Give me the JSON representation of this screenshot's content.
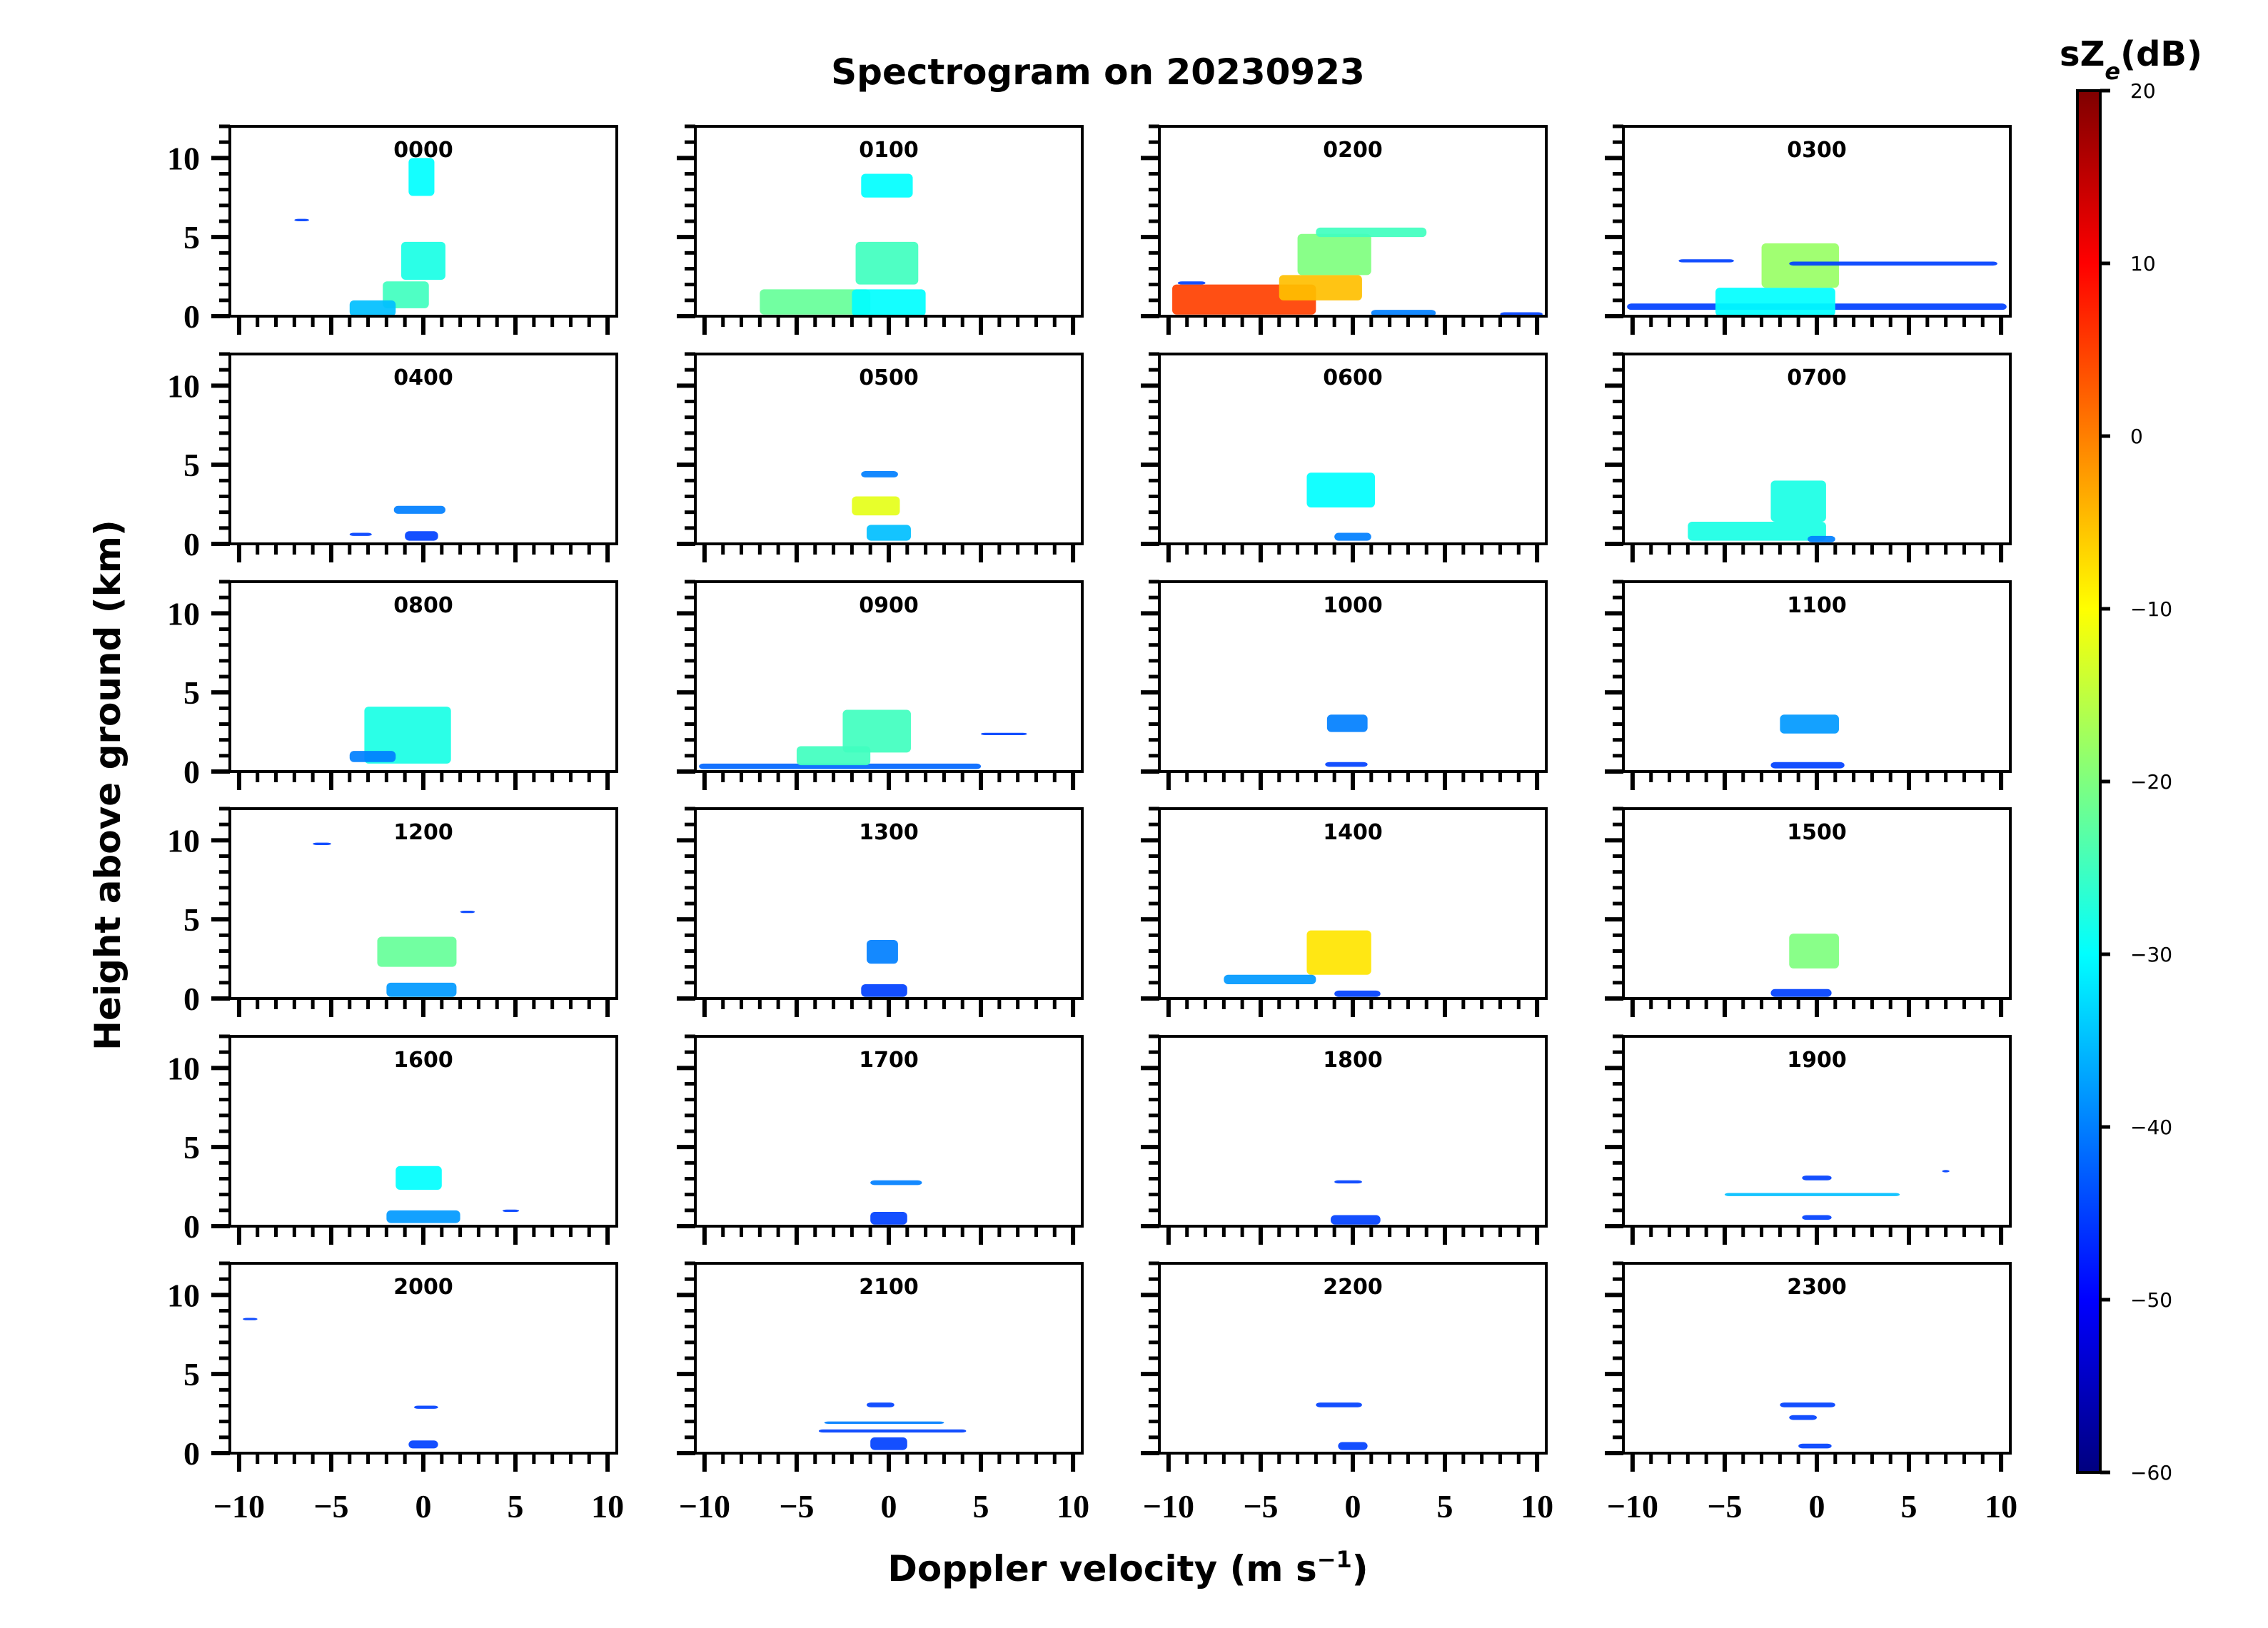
{
  "chart_data": {
    "type": "heatmap",
    "title": "Spectrogram on 20230923",
    "xlabel": "Doppler velocity (m s",
    "xlabel_sup": "−1",
    "xlabel_end": ")",
    "ylabel": "Height above ground (km)",
    "xlim": [
      -10.5,
      10.5
    ],
    "ylim": [
      0,
      12
    ],
    "x_ticks": [
      -10,
      -5,
      0,
      5,
      10
    ],
    "x_tick_labels": [
      "−10",
      "−5",
      "0",
      "5",
      "10"
    ],
    "y_ticks": [
      0,
      5,
      10
    ],
    "y_tick_labels": [
      "0",
      "5",
      "10"
    ],
    "colorbar": {
      "label_main": "sZ",
      "label_sub": "e",
      "label_end": "(dB)",
      "range": [
        -60,
        20
      ],
      "ticks": [
        20,
        10,
        0,
        -10,
        -20,
        -30,
        -40,
        -50,
        -60
      ],
      "tick_labels": [
        "20",
        "10",
        "0",
        "−10",
        "−20",
        "−30",
        "−40",
        "−50",
        "−60"
      ],
      "colormap": "jet",
      "colors": [
        "#00007f",
        "#0000ff",
        "#007fff",
        "#00ffff",
        "#7fff7f",
        "#ffff00",
        "#ff7f00",
        "#ff0000",
        "#7f0000"
      ]
    },
    "panels": [
      {
        "label": "0000",
        "blobs": [
          {
            "v0": -2.2,
            "v1": 0.3,
            "h0": 0.5,
            "h1": 2.2,
            "z": -25
          },
          {
            "v0": -1.2,
            "v1": 1.2,
            "h0": 2.3,
            "h1": 4.7,
            "z": -28
          },
          {
            "v0": -0.8,
            "v1": 0.6,
            "h0": 7.6,
            "h1": 10,
            "z": -30
          },
          {
            "v0": -4,
            "v1": -1.5,
            "h0": 0,
            "h1": 1,
            "z": -35
          },
          {
            "v0": -7,
            "v1": -6.2,
            "h0": 6,
            "h1": 6.15,
            "z": -45
          }
        ]
      },
      {
        "label": "0100",
        "blobs": [
          {
            "v0": -7,
            "v1": -1,
            "h0": 0.1,
            "h1": 1.7,
            "z": -22
          },
          {
            "v0": -2,
            "v1": 2,
            "h0": 0,
            "h1": 1.7,
            "z": -30
          },
          {
            "v0": -1.8,
            "v1": 1.6,
            "h0": 2,
            "h1": 4.7,
            "z": -25
          },
          {
            "v0": -1.5,
            "v1": 1.3,
            "h0": 7.5,
            "h1": 9,
            "z": -30
          }
        ]
      },
      {
        "label": "0200",
        "blobs": [
          {
            "v0": -9.8,
            "v1": -2,
            "h0": 0.1,
            "h1": 2,
            "z": 5
          },
          {
            "v0": -4,
            "v1": 0.5,
            "h0": 1,
            "h1": 2.6,
            "z": -5
          },
          {
            "v0": -3,
            "v1": 1,
            "h0": 2.6,
            "h1": 5.2,
            "z": -20
          },
          {
            "v0": -2,
            "v1": 4,
            "h0": 5,
            "h1": 5.6,
            "z": -25
          },
          {
            "v0": 1,
            "v1": 4.5,
            "h0": 0,
            "h1": 0.4,
            "z": -40
          },
          {
            "v0": 8,
            "v1": 10.3,
            "h0": 0,
            "h1": 0.25,
            "z": -45
          },
          {
            "v0": -9.5,
            "v1": -8,
            "h0": 2,
            "h1": 2.2,
            "z": -45
          }
        ]
      },
      {
        "label": "0300",
        "blobs": [
          {
            "v0": -10.3,
            "v1": 10.3,
            "h0": 0.4,
            "h1": 0.8,
            "z": -45
          },
          {
            "v0": -5.5,
            "v1": 1,
            "h0": 0,
            "h1": 1.8,
            "z": -30
          },
          {
            "v0": -3,
            "v1": 1.2,
            "h0": 1.8,
            "h1": 4.6,
            "z": -18
          },
          {
            "v0": -1.5,
            "v1": 9.8,
            "h0": 3.2,
            "h1": 3.45,
            "z": -45
          },
          {
            "v0": -7.5,
            "v1": -4.5,
            "h0": 3.4,
            "h1": 3.6,
            "z": -45
          }
        ]
      },
      {
        "label": "0400",
        "blobs": [
          {
            "v0": -1.6,
            "v1": 1.2,
            "h0": 1.9,
            "h1": 2.4,
            "z": -40
          },
          {
            "v0": -1,
            "v1": 0.8,
            "h0": 0.2,
            "h1": 0.8,
            "z": -45
          },
          {
            "v0": -4,
            "v1": -2.8,
            "h0": 0.5,
            "h1": 0.7,
            "z": -45
          }
        ]
      },
      {
        "label": "0500",
        "blobs": [
          {
            "v0": -2,
            "v1": 0.6,
            "h0": 1.8,
            "h1": 3,
            "z": -12
          },
          {
            "v0": -1.5,
            "v1": 0.5,
            "h0": 4.2,
            "h1": 4.6,
            "z": -40
          },
          {
            "v0": -1.2,
            "v1": 1.2,
            "h0": 0.2,
            "h1": 1.2,
            "z": -35
          }
        ]
      },
      {
        "label": "0600",
        "blobs": [
          {
            "v0": -2.5,
            "v1": 1.2,
            "h0": 2.3,
            "h1": 4.5,
            "z": -30
          },
          {
            "v0": -1,
            "v1": 1,
            "h0": 0.2,
            "h1": 0.7,
            "z": -40
          }
        ]
      },
      {
        "label": "0700",
        "blobs": [
          {
            "v0": -7,
            "v1": 0.5,
            "h0": 0.2,
            "h1": 1.4,
            "z": -28
          },
          {
            "v0": -2.5,
            "v1": 0.5,
            "h0": 1.4,
            "h1": 4,
            "z": -28
          },
          {
            "v0": -0.5,
            "v1": 1,
            "h0": 0.1,
            "h1": 0.5,
            "z": -40
          }
        ]
      },
      {
        "label": "0800",
        "blobs": [
          {
            "v0": -3.2,
            "v1": 1.5,
            "h0": 0.5,
            "h1": 4.1,
            "z": -28
          },
          {
            "v0": -4,
            "v1": -1.5,
            "h0": 0.6,
            "h1": 1.3,
            "z": -40
          }
        ]
      },
      {
        "label": "0900",
        "blobs": [
          {
            "v0": -10.3,
            "v1": 5,
            "h0": 0.15,
            "h1": 0.5,
            "z": -42
          },
          {
            "v0": -5,
            "v1": -1,
            "h0": 0.4,
            "h1": 1.6,
            "z": -25
          },
          {
            "v0": -2.5,
            "v1": 1.2,
            "h0": 1.2,
            "h1": 3.9,
            "z": -25
          },
          {
            "v0": 5,
            "v1": 7.5,
            "h0": 2.3,
            "h1": 2.45,
            "z": -45
          }
        ]
      },
      {
        "label": "1000",
        "blobs": [
          {
            "v0": -1.4,
            "v1": 0.8,
            "h0": 2.5,
            "h1": 3.6,
            "z": -40
          },
          {
            "v0": -1.5,
            "v1": 0.8,
            "h0": 0.3,
            "h1": 0.6,
            "z": -45
          }
        ]
      },
      {
        "label": "1100",
        "blobs": [
          {
            "v0": -2,
            "v1": 1.2,
            "h0": 2.4,
            "h1": 3.6,
            "z": -38
          },
          {
            "v0": -2.5,
            "v1": 1.5,
            "h0": 0.2,
            "h1": 0.6,
            "z": -45
          }
        ]
      },
      {
        "label": "1200",
        "blobs": [
          {
            "v0": -2.5,
            "v1": 1.8,
            "h0": 2,
            "h1": 3.9,
            "z": -22
          },
          {
            "v0": -2,
            "v1": 1.8,
            "h0": 0.1,
            "h1": 1,
            "z": -38
          },
          {
            "v0": -6,
            "v1": -5,
            "h0": 9.7,
            "h1": 9.85,
            "z": -45
          },
          {
            "v0": 2,
            "v1": 2.8,
            "h0": 5.4,
            "h1": 5.55,
            "z": -45
          }
        ]
      },
      {
        "label": "1300",
        "blobs": [
          {
            "v0": -1.2,
            "v1": 0.5,
            "h0": 2.2,
            "h1": 3.7,
            "z": -40
          },
          {
            "v0": -1.5,
            "v1": 1,
            "h0": 0.1,
            "h1": 0.9,
            "z": -45
          }
        ]
      },
      {
        "label": "1400",
        "blobs": [
          {
            "v0": -2.5,
            "v1": 1,
            "h0": 1.5,
            "h1": 4.3,
            "z": -8
          },
          {
            "v0": -7,
            "v1": -2,
            "h0": 0.9,
            "h1": 1.5,
            "z": -38
          },
          {
            "v0": -1,
            "v1": 1.5,
            "h0": 0.1,
            "h1": 0.5,
            "z": -45
          }
        ]
      },
      {
        "label": "1500",
        "blobs": [
          {
            "v0": -1.5,
            "v1": 1.2,
            "h0": 1.9,
            "h1": 4.1,
            "z": -20
          },
          {
            "v0": -2.5,
            "v1": 0.8,
            "h0": 0.1,
            "h1": 0.6,
            "z": -45
          }
        ]
      },
      {
        "label": "1600",
        "blobs": [
          {
            "v0": -1.5,
            "v1": 1,
            "h0": 2.3,
            "h1": 3.8,
            "z": -30
          },
          {
            "v0": -2,
            "v1": 2,
            "h0": 0.2,
            "h1": 1,
            "z": -38
          },
          {
            "v0": 4.3,
            "v1": 5.2,
            "h0": 0.9,
            "h1": 1.05,
            "z": -45
          }
        ]
      },
      {
        "label": "1700",
        "blobs": [
          {
            "v0": -1,
            "v1": 1.8,
            "h0": 2.6,
            "h1": 2.9,
            "z": -40
          },
          {
            "v0": -1,
            "v1": 1,
            "h0": 0.1,
            "h1": 0.9,
            "z": -45
          }
        ]
      },
      {
        "label": "1800",
        "blobs": [
          {
            "v0": -1,
            "v1": 0.5,
            "h0": 2.7,
            "h1": 2.9,
            "z": -45
          },
          {
            "v0": -1.2,
            "v1": 1.5,
            "h0": 0.1,
            "h1": 0.7,
            "z": -45
          }
        ]
      },
      {
        "label": "1900",
        "blobs": [
          {
            "v0": -5,
            "v1": 4.5,
            "h0": 1.9,
            "h1": 2.1,
            "z": -35
          },
          {
            "v0": -0.8,
            "v1": 0.8,
            "h0": 2.9,
            "h1": 3.2,
            "z": -45
          },
          {
            "v0": -0.8,
            "v1": 0.8,
            "h0": 0.4,
            "h1": 0.7,
            "z": -45
          },
          {
            "v0": 6.8,
            "v1": 7.2,
            "h0": 3.4,
            "h1": 3.55,
            "z": -45
          }
        ]
      },
      {
        "label": "2000",
        "blobs": [
          {
            "v0": -0.8,
            "v1": 0.8,
            "h0": 0.3,
            "h1": 0.8,
            "z": -45
          },
          {
            "v0": -0.5,
            "v1": 0.8,
            "h0": 2.8,
            "h1": 3,
            "z": -45
          },
          {
            "v0": -9.8,
            "v1": -9,
            "h0": 8.4,
            "h1": 8.55,
            "z": -45
          }
        ]
      },
      {
        "label": "2100",
        "blobs": [
          {
            "v0": -1.2,
            "v1": 0.3,
            "h0": 2.9,
            "h1": 3.2,
            "z": -45
          },
          {
            "v0": -3.5,
            "v1": 3,
            "h0": 1.85,
            "h1": 2,
            "z": -40
          },
          {
            "v0": -3.8,
            "v1": 4.2,
            "h0": 1.3,
            "h1": 1.5,
            "z": -45
          },
          {
            "v0": -1,
            "v1": 1,
            "h0": 0.2,
            "h1": 1,
            "z": -45
          }
        ]
      },
      {
        "label": "2200",
        "blobs": [
          {
            "v0": -2,
            "v1": 0.5,
            "h0": 2.9,
            "h1": 3.2,
            "z": -45
          },
          {
            "v0": -0.8,
            "v1": 0.8,
            "h0": 0.2,
            "h1": 0.7,
            "z": -45
          }
        ]
      },
      {
        "label": "2300",
        "blobs": [
          {
            "v0": -2,
            "v1": 1,
            "h0": 2.9,
            "h1": 3.2,
            "z": -45
          },
          {
            "v0": -1.5,
            "v1": 0,
            "h0": 2.1,
            "h1": 2.4,
            "z": -45
          },
          {
            "v0": -1,
            "v1": 0.8,
            "h0": 0.3,
            "h1": 0.6,
            "z": -45
          }
        ]
      }
    ]
  }
}
